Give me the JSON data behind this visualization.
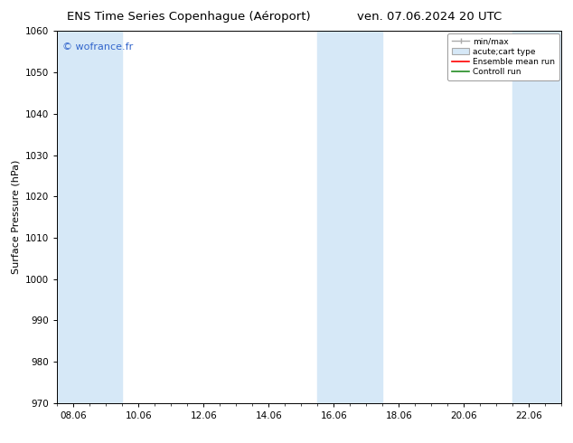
{
  "title_left": "ENS Time Series Copenhague (Aéroport)",
  "title_right": "ven. 07.06.2024 20 UTC",
  "ylabel": "Surface Pressure (hPa)",
  "watermark": "© wofrance.fr",
  "watermark_color": "#3366cc",
  "ylim": [
    970,
    1060
  ],
  "yticks": [
    970,
    980,
    990,
    1000,
    1010,
    1020,
    1030,
    1040,
    1050,
    1060
  ],
  "xtick_labels": [
    "08.06",
    "10.06",
    "12.06",
    "14.06",
    "16.06",
    "18.06",
    "20.06",
    "22.06"
  ],
  "xtick_positions": [
    0,
    2,
    4,
    6,
    8,
    10,
    12,
    14
  ],
  "xlim": [
    -0.5,
    15
  ],
  "bg_color": "#ffffff",
  "plot_bg_color": "#ffffff",
  "shaded_bands": [
    {
      "x_start": -0.5,
      "x_end": 1.5,
      "color": "#d6e8f7"
    },
    {
      "x_start": 7.5,
      "x_end": 9.5,
      "color": "#d6e8f7"
    },
    {
      "x_start": 13.5,
      "x_end": 15.0,
      "color": "#d6e8f7"
    }
  ],
  "legend_entries": [
    {
      "label": "min/max",
      "type": "errorbar",
      "color": "#aaaaaa"
    },
    {
      "label": "acute;cart type",
      "type": "box",
      "facecolor": "#d6e8f7",
      "edgecolor": "#aaaaaa"
    },
    {
      "label": "Ensemble mean run",
      "type": "line",
      "color": "#ff0000"
    },
    {
      "label": "Controll run",
      "type": "line",
      "color": "#008000"
    }
  ],
  "title_fontsize": 9.5,
  "ylabel_fontsize": 8,
  "tick_fontsize": 7.5,
  "legend_fontsize": 6.5,
  "watermark_fontsize": 8
}
